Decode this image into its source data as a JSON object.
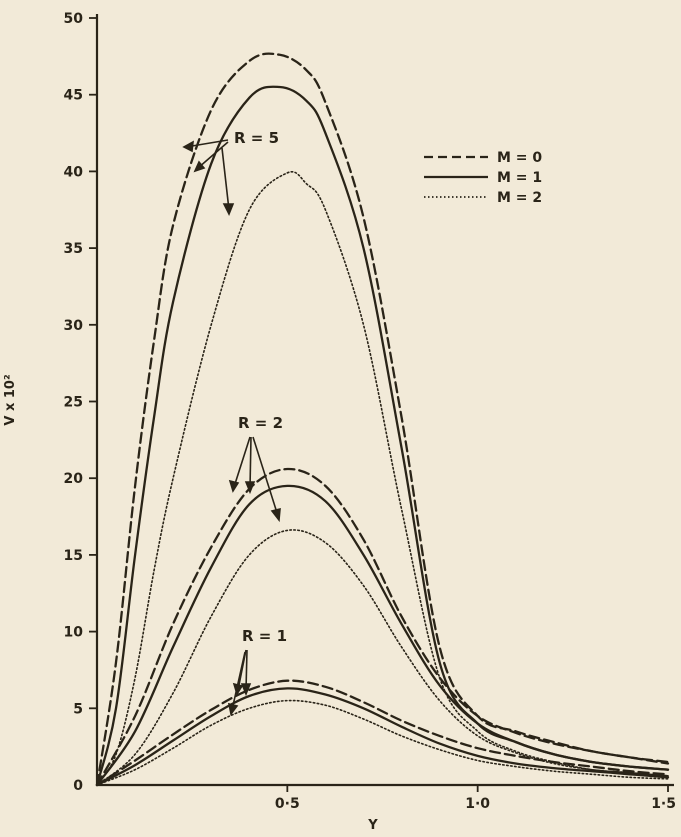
{
  "chart_data": {
    "type": "line",
    "xlabel": "Y",
    "ylabel": "V x 10²",
    "xlim": [
      0,
      1.5
    ],
    "ylim": [
      0,
      50
    ],
    "x_ticks": [
      0.5,
      1.0,
      1.5
    ],
    "x_tick_labels": [
      "0·5",
      "1·0",
      "1·5"
    ],
    "y_ticks": [
      0,
      5,
      10,
      15,
      20,
      25,
      30,
      35,
      40,
      45,
      50
    ],
    "y_tick_labels": [
      "0",
      "5",
      "10",
      "15",
      "20",
      "25",
      "30",
      "35",
      "40",
      "45",
      "50"
    ],
    "legend": {
      "placement": "top-right",
      "entries": [
        {
          "label": "M = 0",
          "style": "dashed"
        },
        {
          "label": "M = 1",
          "style": "solid"
        },
        {
          "label": "M = 2",
          "style": "dotted"
        }
      ]
    },
    "group_labels": [
      "R = 5",
      "R = 2",
      "R = 1"
    ],
    "colors": {
      "background": "#f2ead8",
      "ink": "#2a2418"
    },
    "series": [
      {
        "group": "R = 5",
        "style": "dashed",
        "x": [
          0,
          0.05,
          0.1,
          0.15,
          0.2,
          0.3,
          0.4,
          0.48,
          0.55,
          0.6,
          0.7,
          0.8,
          0.9,
          1.0,
          1.1,
          1.2,
          1.3,
          1.4,
          1.5
        ],
        "values": [
          0,
          8,
          19.5,
          29,
          36.5,
          44,
          47.2,
          47.6,
          46.6,
          44.5,
          37,
          24,
          9,
          4.5,
          3.5,
          2.8,
          2.2,
          1.8,
          1.4
        ]
      },
      {
        "group": "R = 5",
        "style": "solid",
        "x": [
          0,
          0.05,
          0.1,
          0.15,
          0.2,
          0.3,
          0.4,
          0.48,
          0.55,
          0.6,
          0.7,
          0.8,
          0.9,
          1.0,
          1.1,
          1.2,
          1.3,
          1.4,
          1.5
        ],
        "values": [
          0,
          5,
          15,
          24,
          31.5,
          40.5,
          44.8,
          45.5,
          44.6,
          42.5,
          35,
          22,
          8,
          4,
          2.8,
          2,
          1.5,
          1.2,
          1
        ]
      },
      {
        "group": "R = 5",
        "style": "dotted",
        "x": [
          0,
          0.05,
          0.1,
          0.15,
          0.2,
          0.3,
          0.4,
          0.5,
          0.55,
          0.6,
          0.7,
          0.8,
          0.9,
          1.0,
          1.1,
          1.2,
          1.3,
          1.4,
          1.5
        ],
        "values": [
          0,
          2,
          7,
          14,
          20,
          30,
          37.5,
          39.9,
          39.2,
          37.5,
          30,
          18,
          7,
          3.5,
          2.2,
          1.5,
          1,
          0.8,
          0.6
        ]
      },
      {
        "group": "R = 2",
        "style": "dashed",
        "x": [
          0,
          0.1,
          0.2,
          0.3,
          0.4,
          0.5,
          0.6,
          0.7,
          0.8,
          0.9,
          1.0,
          1.1,
          1.2,
          1.3,
          1.4,
          1.5
        ],
        "values": [
          0,
          4.5,
          10.5,
          15.5,
          19.3,
          20.6,
          19.5,
          16,
          11,
          7,
          4.5,
          3.4,
          2.7,
          2.2,
          1.8,
          1.5
        ]
      },
      {
        "group": "R = 2",
        "style": "solid",
        "x": [
          0,
          0.1,
          0.2,
          0.3,
          0.4,
          0.5,
          0.6,
          0.7,
          0.8,
          0.9,
          1.0,
          1.1,
          1.2,
          1.3,
          1.4,
          1.5
        ],
        "values": [
          0,
          3.5,
          9,
          14.2,
          18.3,
          19.5,
          18.5,
          15,
          10.5,
          6.5,
          4,
          2.8,
          2,
          1.5,
          1.2,
          1
        ]
      },
      {
        "group": "R = 2",
        "style": "dotted",
        "x": [
          0,
          0.1,
          0.2,
          0.3,
          0.4,
          0.5,
          0.6,
          0.7,
          0.8,
          0.9,
          1.0,
          1.1,
          1.2,
          1.3,
          1.4,
          1.5
        ],
        "values": [
          0,
          2,
          6,
          11,
          15,
          16.6,
          15.8,
          13,
          9,
          5.5,
          3.2,
          2.1,
          1.4,
          1,
          0.8,
          0.6
        ]
      },
      {
        "group": "R = 1",
        "style": "dashed",
        "x": [
          0,
          0.1,
          0.2,
          0.3,
          0.4,
          0.5,
          0.6,
          0.7,
          0.8,
          0.9,
          1.0,
          1.1,
          1.2,
          1.3,
          1.4,
          1.5
        ],
        "values": [
          0,
          1.6,
          3.3,
          4.9,
          6.2,
          6.8,
          6.4,
          5.4,
          4.2,
          3.2,
          2.4,
          1.9,
          1.5,
          1.2,
          0.9,
          0.7
        ]
      },
      {
        "group": "R = 1",
        "style": "solid",
        "x": [
          0,
          0.1,
          0.2,
          0.3,
          0.4,
          0.5,
          0.6,
          0.7,
          0.8,
          0.9,
          1.0,
          1.1,
          1.2,
          1.3,
          1.4,
          1.5
        ],
        "values": [
          0,
          1.3,
          2.9,
          4.5,
          5.8,
          6.3,
          5.9,
          5,
          3.8,
          2.7,
          1.9,
          1.4,
          1.1,
          0.9,
          0.7,
          0.5
        ]
      },
      {
        "group": "R = 1",
        "style": "dotted",
        "x": [
          0,
          0.1,
          0.2,
          0.3,
          0.4,
          0.5,
          0.6,
          0.7,
          0.8,
          0.9,
          1.0,
          1.1,
          1.2,
          1.3,
          1.4,
          1.5
        ],
        "values": [
          0,
          1,
          2.4,
          3.9,
          5,
          5.5,
          5.2,
          4.3,
          3.2,
          2.3,
          1.6,
          1.2,
          0.9,
          0.7,
          0.5,
          0.4
        ]
      }
    ]
  }
}
